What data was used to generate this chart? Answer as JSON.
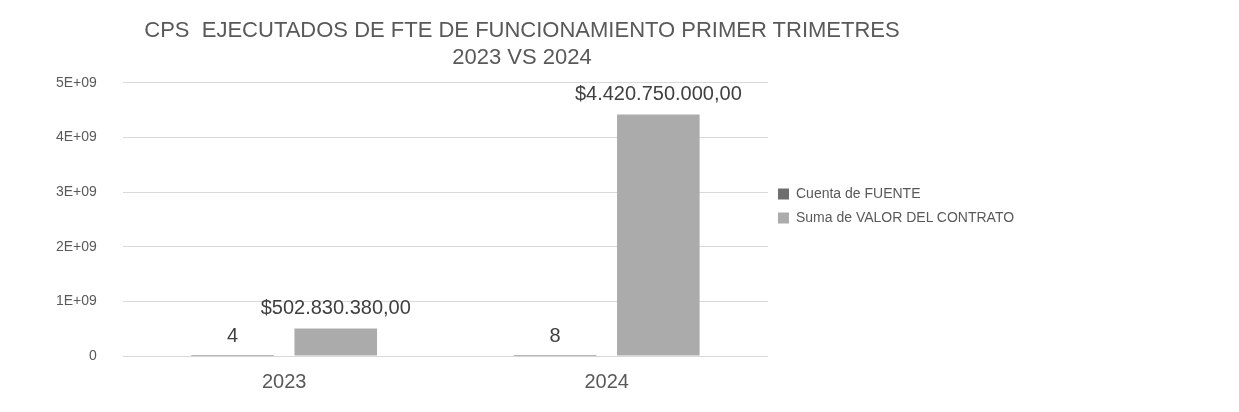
{
  "chart_data": {
    "type": "bar",
    "title": "CPS  EJECUTADOS DE FTE DE FUNCIONAMIENTO PRIMER TRIMETRES 2023 VS 2024",
    "categories": [
      "2023",
      "2024"
    ],
    "series": [
      {
        "name": "Cuenta de FUENTE",
        "color": "#6e6e6e",
        "values": [
          4,
          8
        ],
        "value_labels": [
          "4",
          "8"
        ]
      },
      {
        "name": "Suma de VALOR DEL CONTRATO",
        "color": "#ababab",
        "values": [
          502830380,
          4420750000
        ],
        "value_labels": [
          "$502.830.380,00",
          "$4.420.750.000,00"
        ]
      }
    ],
    "ylim": [
      0,
      5000000000
    ],
    "yticks": [
      0,
      {
        "value": 1000000000,
        "label": "1E+09"
      },
      {
        "value": 2000000000,
        "label": "2E+09"
      },
      {
        "value": 3000000000,
        "label": "3E+09"
      },
      {
        "value": 4000000000,
        "label": "4E+09"
      },
      {
        "value": 5000000000,
        "label": "5E+09"
      }
    ],
    "grid": "y",
    "legend": "right"
  }
}
